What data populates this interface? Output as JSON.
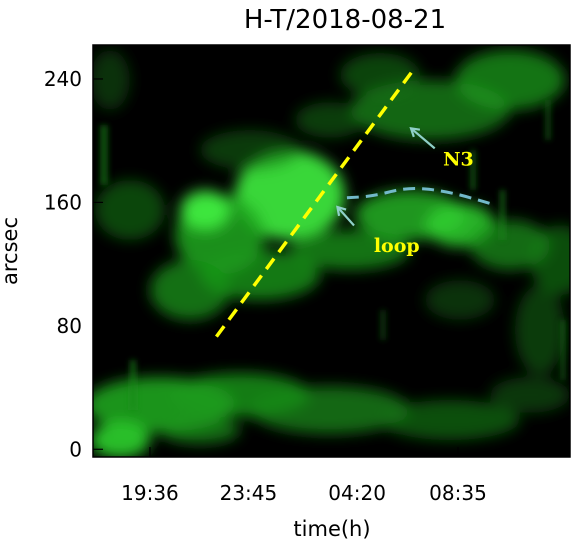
{
  "chart_data": {
    "type": "heatmap",
    "title": "H-T/2018-08-21",
    "xlabel": "time(h)",
    "ylabel": "arcsec",
    "x_ticks": [
      "19:36",
      "23:45",
      "04:20",
      "08:35"
    ],
    "x_tick_hours": [
      19.6,
      23.75,
      28.33,
      32.58
    ],
    "xlim_hours": [
      17.2,
      37.3
    ],
    "ylim": [
      -5,
      262
    ],
    "y_ticks": [
      0,
      80,
      160,
      240
    ],
    "colormap": "green on black",
    "features": [
      {
        "name": "diagonal-band",
        "start": [
          22.4,
          73
        ],
        "end": [
          30.8,
          248
        ],
        "style": "dashed",
        "color": "#ffff00"
      },
      {
        "name": "loop-path",
        "points": [
          [
            27.9,
            163
          ],
          [
            29.0,
            164
          ],
          [
            30.5,
            170
          ],
          [
            32.2,
            167
          ],
          [
            34.0,
            159
          ]
        ],
        "style": "dashed",
        "color": "#72b9c9"
      }
    ],
    "annotations": [
      {
        "text": "N3",
        "color": "#ffff00",
        "arrow_color": "#8fd0c8",
        "text_pos": [
          32.6,
          184
        ],
        "arrow_from": [
          31.6,
          195
        ],
        "arrow_to": [
          30.6,
          208
        ]
      },
      {
        "text": "loop",
        "color": "#ffff00",
        "arrow_color": "#8fd0c8",
        "text_pos": [
          30.0,
          128
        ],
        "arrow_from": [
          28.2,
          145
        ],
        "arrow_to": [
          27.5,
          157
        ]
      }
    ],
    "colors": {
      "background": "#000000",
      "emission": "#22ee22",
      "frame": "#000000"
    }
  }
}
